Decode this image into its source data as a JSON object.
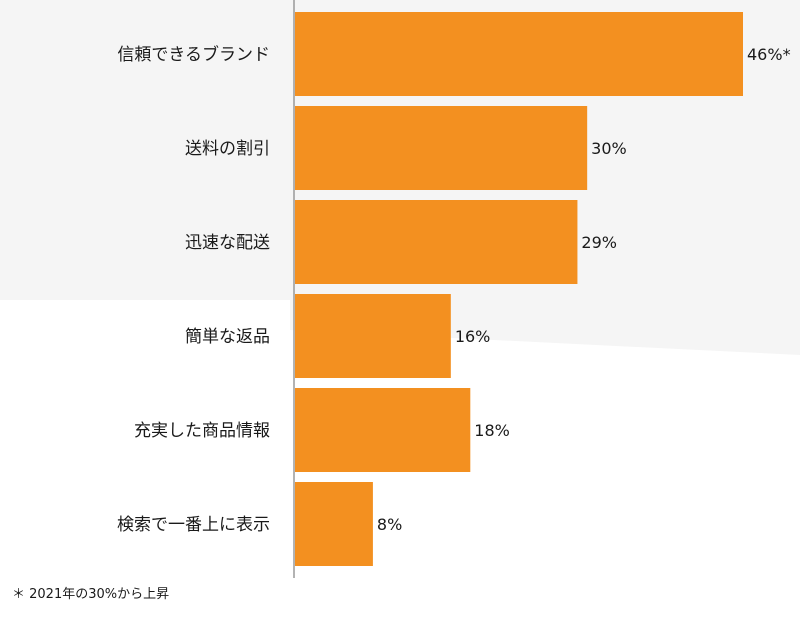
{
  "chart_data": {
    "type": "bar",
    "orientation": "horizontal",
    "categories": [
      "信頼できるブランド",
      "送料の割引",
      "迅速な配送",
      "簡単な返品",
      "充実した商品情報",
      "検索で一番上に表示"
    ],
    "values": [
      46,
      30,
      29,
      16,
      18,
      8
    ],
    "value_labels": [
      "46%*",
      "30%",
      "29%",
      "16%",
      "18%",
      "8%"
    ],
    "unit": "%",
    "xlim": [
      0,
      46
    ],
    "grid": false,
    "legend": "none",
    "bar_color": "#f39020"
  },
  "footnote": "＊ 2021年の30%から上昇"
}
